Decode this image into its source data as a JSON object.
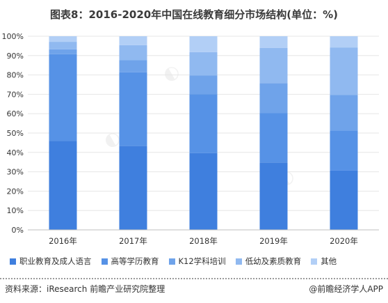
{
  "title": "图表8：2016-2020年中国在线教育细分市场结构(单位：%)",
  "colors": [
    "#3f7fde",
    "#5692e6",
    "#6fa3ea",
    "#90b9f0",
    "#b2cff6"
  ],
  "chart_data": {
    "type": "bar",
    "stacked": true,
    "categories": [
      "2016年",
      "2017年",
      "2018年",
      "2019年",
      "2020年"
    ],
    "yticks": [
      "0%",
      "10%",
      "20%",
      "30%",
      "40%",
      "50%",
      "60%",
      "70%",
      "80%",
      "90%",
      "100%"
    ],
    "ylim": [
      0,
      100
    ],
    "legend_position": "bottom",
    "series": [
      {
        "name": "职业教育及成人语言",
        "values": [
          46,
          43.3,
          39.6,
          34.8,
          30.6
        ]
      },
      {
        "name": "高等学历教育",
        "values": [
          44.7,
          38.1,
          30.5,
          25.6,
          20.7
        ]
      },
      {
        "name": "K12学科培训",
        "values": [
          2.5,
          6.2,
          9.7,
          15.4,
          18.3
        ]
      },
      {
        "name": "低幼及素质教育",
        "values": [
          3.9,
          7.8,
          12,
          18.2,
          24.6
        ]
      },
      {
        "name": "其他",
        "values": [
          2.9,
          4.6,
          8.2,
          6,
          5.8
        ]
      }
    ]
  },
  "footer": {
    "source": "资料来源：iResearch 前瞻产业研究院整理",
    "brand": "@前瞻经济学人APP"
  }
}
